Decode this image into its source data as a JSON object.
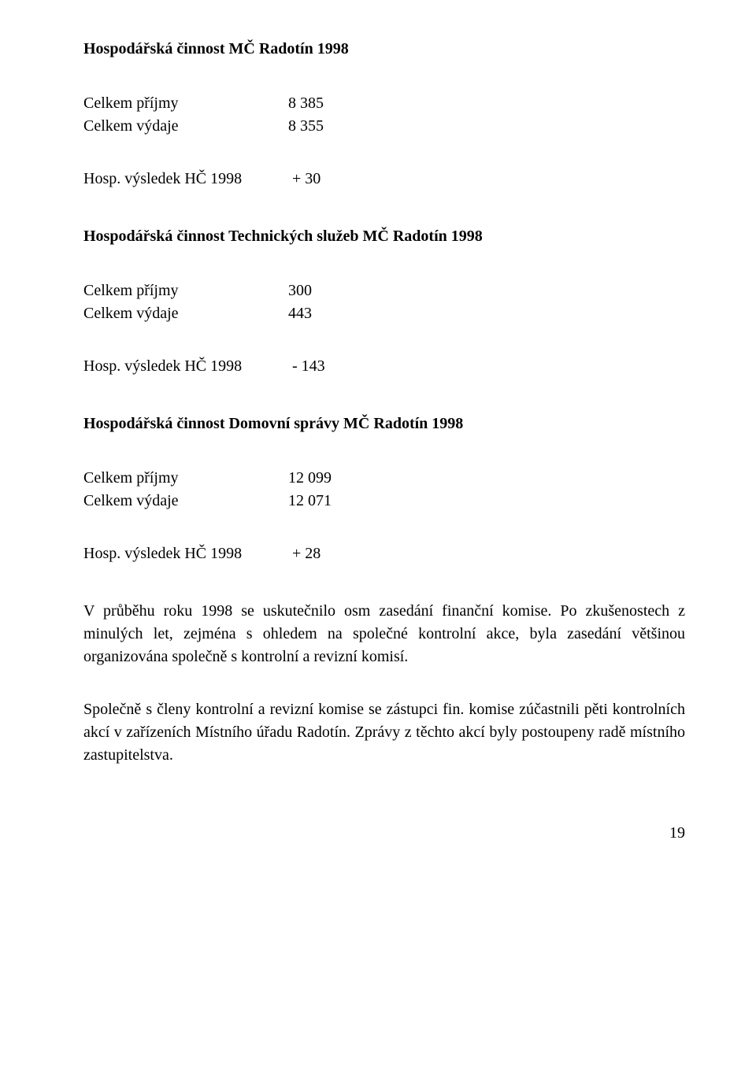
{
  "section1": {
    "heading": "Hospodářská činnost MČ Radotín 1998",
    "income_label": "Celkem příjmy",
    "income_value": "8 385",
    "expense_label": "Celkem výdaje",
    "expense_value": "8 355",
    "result_label": "Hosp. výsledek HČ 1998",
    "result_value": "+ 30"
  },
  "section2": {
    "heading": "Hospodářská činnost Technických služeb MČ Radotín 1998",
    "income_label": "Celkem příjmy",
    "income_value": "300",
    "expense_label": "Celkem výdaje",
    "expense_value": "443",
    "result_label": "Hosp. výsledek HČ 1998",
    "result_value": "- 143"
  },
  "section3": {
    "heading": "Hospodářská činnost Domovní správy MČ Radotín 1998",
    "income_label": "Celkem příjmy",
    "income_value": "12 099",
    "expense_label": "Celkem výdaje",
    "expense_value": "12 071",
    "result_label": "Hosp. výsledek HČ 1998",
    "result_value": "+ 28"
  },
  "para1": "V průběhu roku 1998 se uskutečnilo osm zasedání finanční komise. Po zkušenostech z minulých let, zejména s ohledem na společné kontrolní akce, byla zasedání většinou organizována společně s kontrolní a revizní komisí.",
  "para2": "Společně s členy kontrolní a revizní komise se zástupci fin. komise zúčastnili pěti kontrolních akcí v zařízeních Místního úřadu Radotín. Zprávy z těchto akcí byly postoupeny radě místního zastupitelstva.",
  "page_number": "19"
}
